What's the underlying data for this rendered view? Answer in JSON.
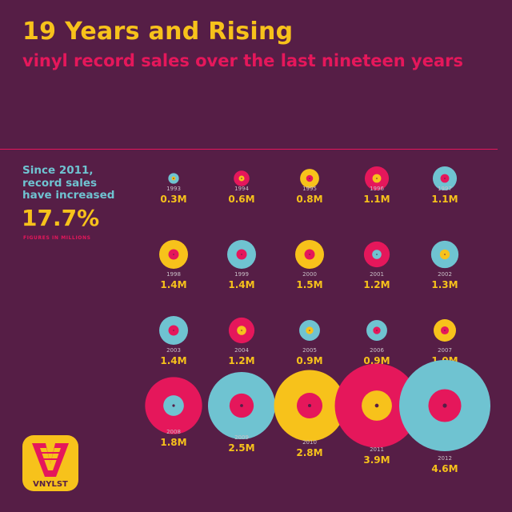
{
  "header": {
    "title": "19 Years and Rising",
    "subtitle": "vinyl record sales over the last nineteen years"
  },
  "stat": {
    "text": "Since 2011, record sales have increased",
    "value": "17.7%",
    "note": "FIGURES IN MILLIONS"
  },
  "logo": {
    "text": "VNYLST"
  },
  "colors": {
    "background": "#561e46",
    "yellow": "#f7c21b",
    "pink": "#e5175b",
    "teal": "#6fc3d1",
    "text_muted": "#c9bfc7"
  },
  "chart_data": {
    "type": "bubble",
    "title": "19 Years and Rising",
    "subtitle": "vinyl record sales over the last nineteen years",
    "unit": "M",
    "records": [
      {
        "year": "1993",
        "value": 0.3,
        "label": "0.3M",
        "disc": "teal",
        "center": "yellow"
      },
      {
        "year": "1994",
        "value": 0.6,
        "label": "0.6M",
        "disc": "pink",
        "center": "yellow"
      },
      {
        "year": "1995",
        "value": 0.8,
        "label": "0.8M",
        "disc": "yellow",
        "center": "pink"
      },
      {
        "year": "1996",
        "value": 1.1,
        "label": "1.1M",
        "disc": "pink",
        "center": "yellow"
      },
      {
        "year": "1997",
        "value": 1.1,
        "label": "1.1M",
        "disc": "teal",
        "center": "pink"
      },
      {
        "year": "1998",
        "value": 1.4,
        "label": "1.4M",
        "disc": "yellow",
        "center": "pink"
      },
      {
        "year": "1999",
        "value": 1.4,
        "label": "1.4M",
        "disc": "teal",
        "center": "pink"
      },
      {
        "year": "2000",
        "value": 1.5,
        "label": "1.5M",
        "disc": "yellow",
        "center": "pink"
      },
      {
        "year": "2001",
        "value": 1.2,
        "label": "1.2M",
        "disc": "pink",
        "center": "teal"
      },
      {
        "year": "2002",
        "value": 1.3,
        "label": "1.3M",
        "disc": "teal",
        "center": "yellow"
      },
      {
        "year": "2003",
        "value": 1.4,
        "label": "1.4M",
        "disc": "teal",
        "center": "pink"
      },
      {
        "year": "2004",
        "value": 1.2,
        "label": "1.2M",
        "disc": "pink",
        "center": "yellow"
      },
      {
        "year": "2005",
        "value": 0.9,
        "label": "0.9M",
        "disc": "teal",
        "center": "yellow"
      },
      {
        "year": "2006",
        "value": 0.9,
        "label": "0.9M",
        "disc": "teal",
        "center": "pink"
      },
      {
        "year": "2007",
        "value": 1.0,
        "label": "1.0M",
        "disc": "yellow",
        "center": "pink"
      },
      {
        "year": "2008",
        "value": 1.8,
        "label": "1.8M",
        "disc": "pink",
        "center": "teal"
      },
      {
        "year": "2009",
        "value": 2.5,
        "label": "2.5M",
        "disc": "teal",
        "center": "pink"
      },
      {
        "year": "2010",
        "value": 2.8,
        "label": "2.8M",
        "disc": "yellow",
        "center": "pink"
      },
      {
        "year": "2011",
        "value": 3.9,
        "label": "3.9M",
        "disc": "pink",
        "center": "yellow"
      },
      {
        "year": "2012",
        "value": 4.6,
        "label": "4.6M",
        "disc": "teal",
        "center": "pink"
      }
    ]
  }
}
